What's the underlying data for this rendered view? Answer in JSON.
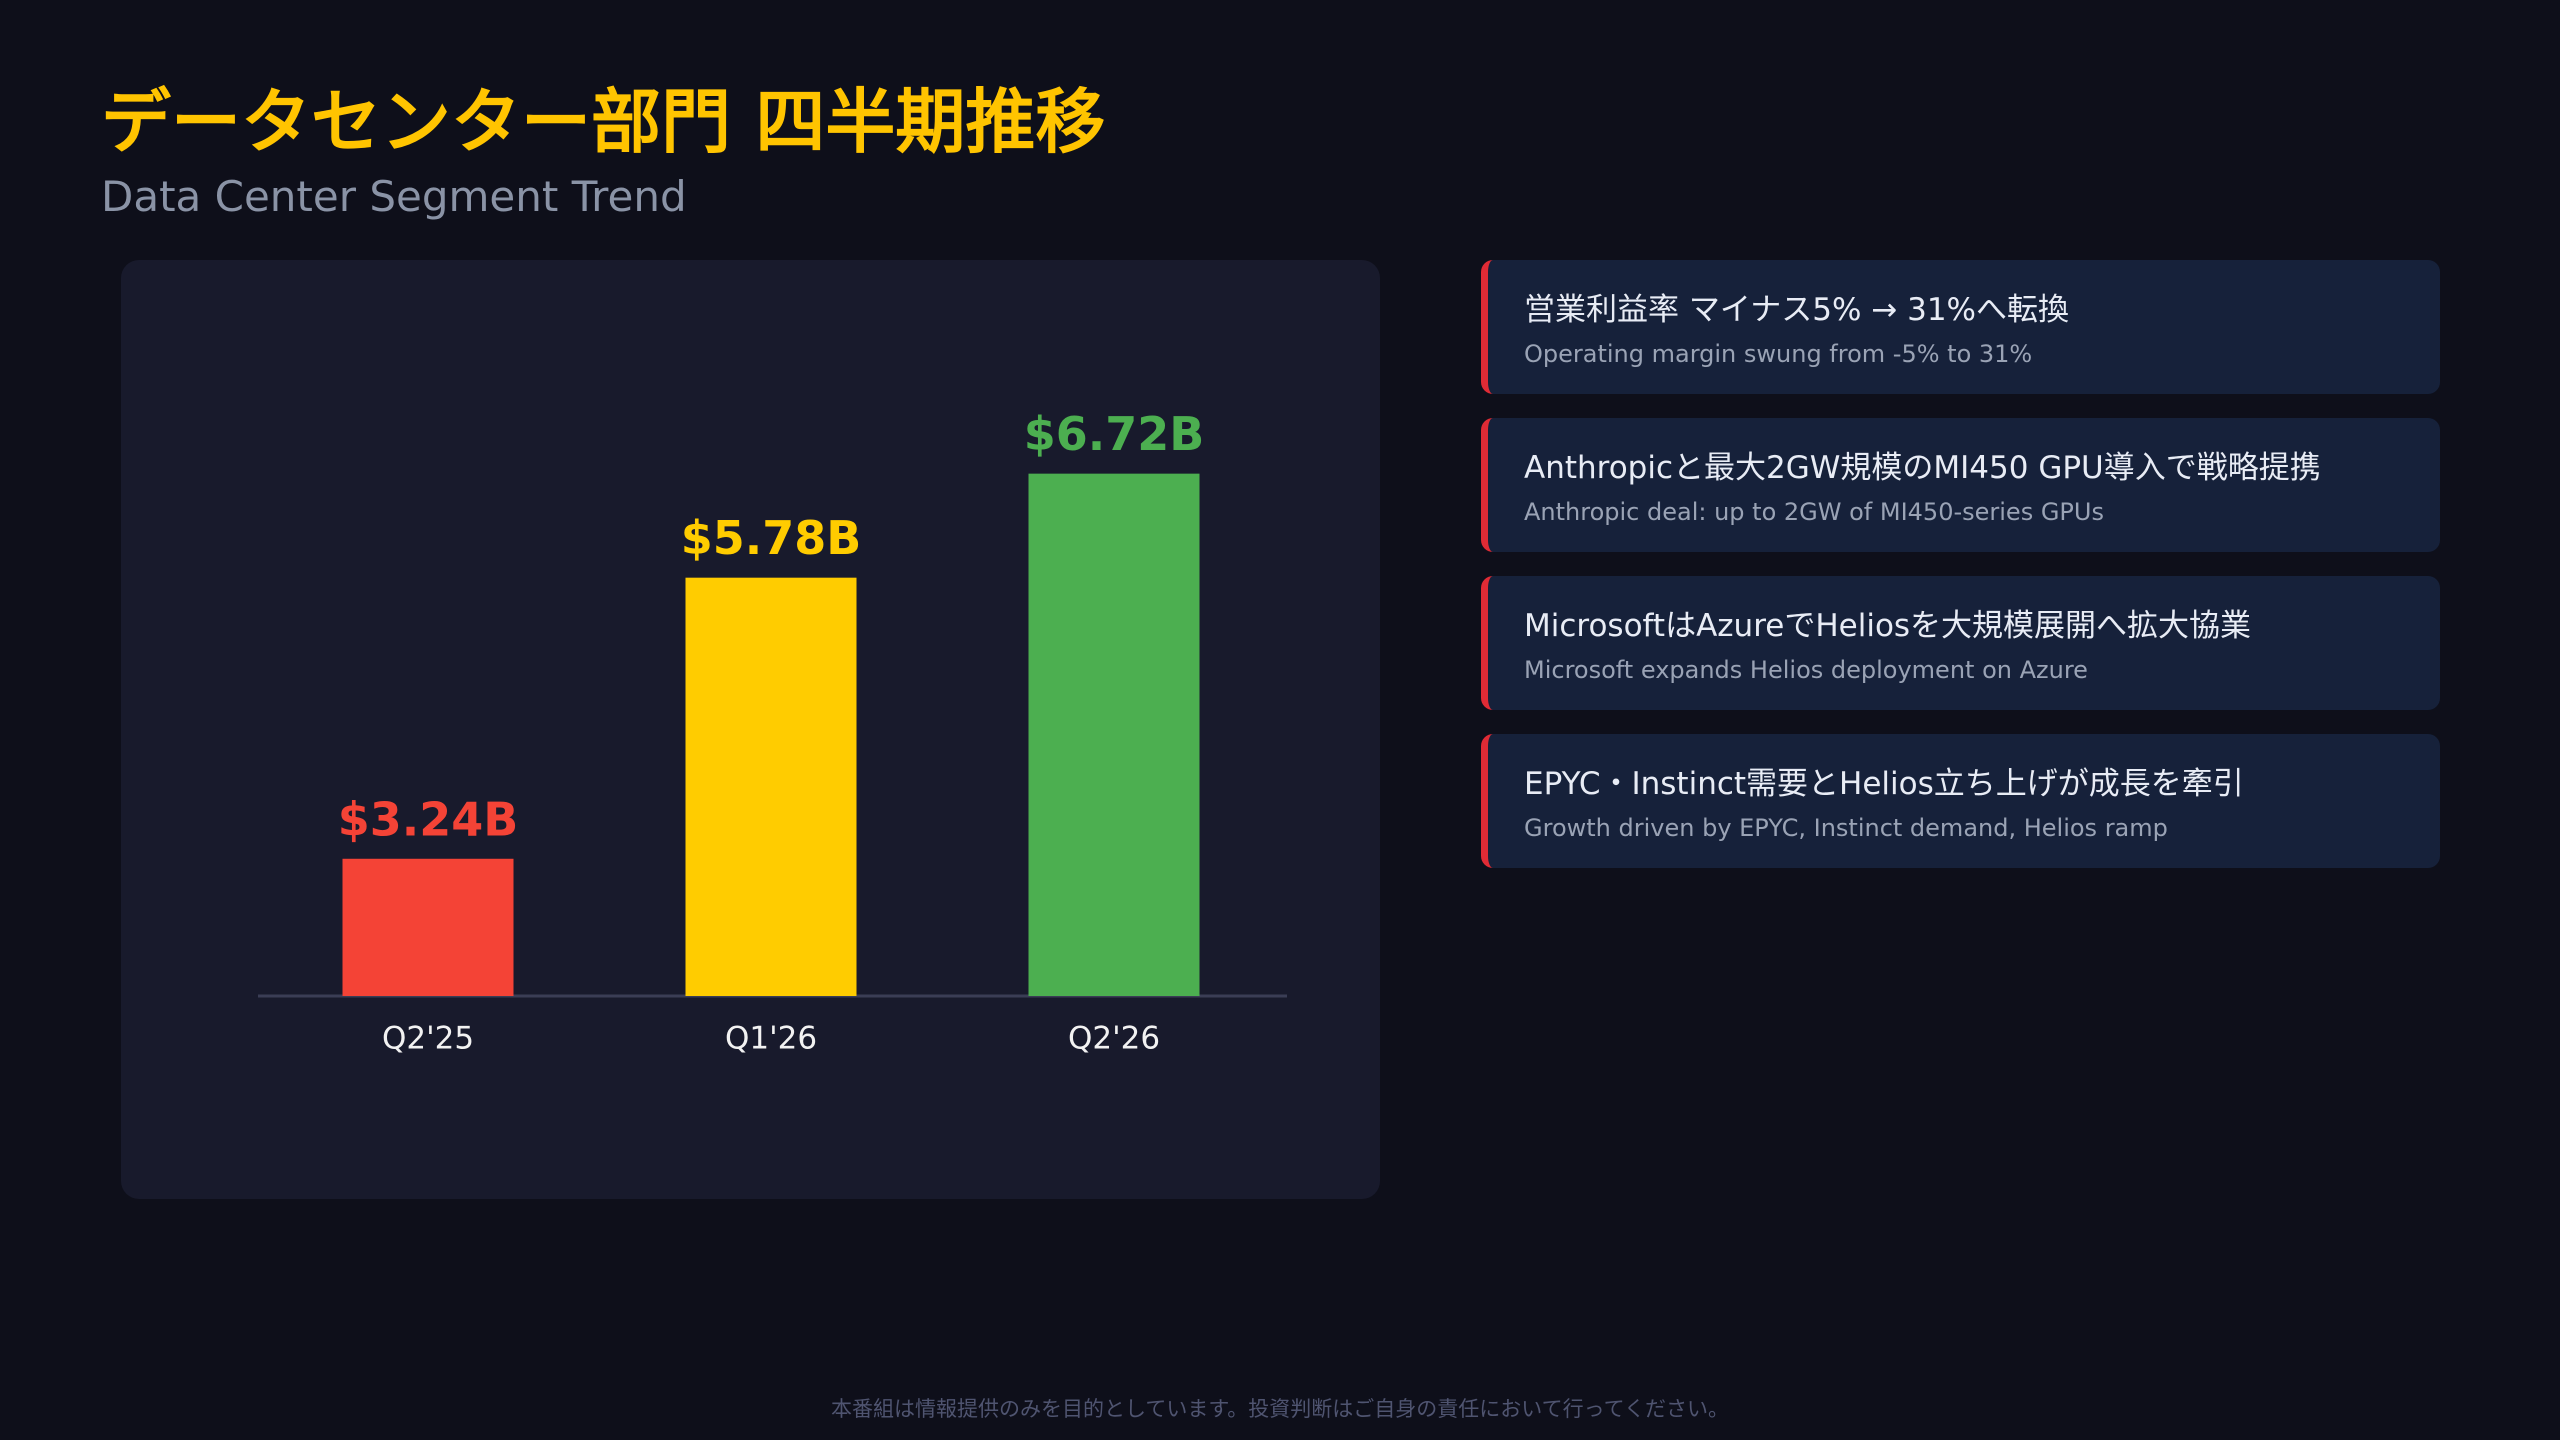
{
  "title": "データセンター部門 四半期推移",
  "subtitle": "Data Center Segment Trend",
  "chart_data": {
    "type": "bar",
    "categories": [
      "Q2'25",
      "Q1'26",
      "Q2'26"
    ],
    "values": [
      3.24,
      5.78,
      6.72
    ],
    "value_labels": [
      "$3.24B",
      "$5.78B",
      "$6.72B"
    ],
    "colors": [
      "#f44336",
      "#ffcc00",
      "#4caf50"
    ],
    "ylim": [
      2,
      8
    ]
  },
  "cards": [
    {
      "title": "営業利益率 マイナス5% → 31%へ転換",
      "subtitle": "Operating margin swung from -5% to 31%"
    },
    {
      "title": "Anthropicと最大2GW規模のMI450 GPU導入で戦略提携",
      "subtitle": "Anthropic deal: up to 2GW of MI450-series GPUs"
    },
    {
      "title": "MicrosoftはAzureでHeliosを大規模展開へ拡大協業",
      "subtitle": "Microsoft expands Helios deployment on Azure"
    },
    {
      "title": "EPYC・Instinct需要とHelios立ち上げが成長を牽引",
      "subtitle": "Growth driven by EPYC, Instinct demand, Helios ramp"
    }
  ],
  "disclaimer": "本番組は情報提供のみを目的としています。投資判断はご自身の責任において行ってください。"
}
